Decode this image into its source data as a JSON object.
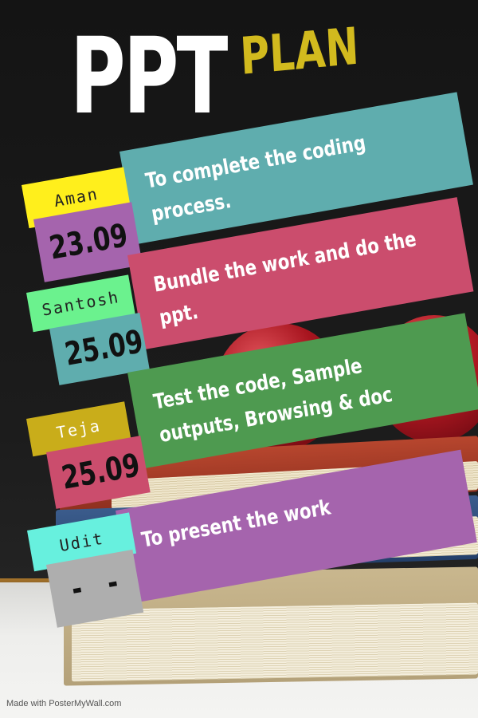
{
  "title": {
    "main": "PPT",
    "accent": "PLAN"
  },
  "plan_items": [
    {
      "name": "Aman",
      "date": "23.09",
      "task_lines": [
        "To complete the coding",
        "process."
      ]
    },
    {
      "name": "Santosh",
      "date": "25.09",
      "task_lines": [
        "Bundle the work and do the",
        "ppt."
      ]
    },
    {
      "name": "Teja",
      "date": "25.09",
      "task_lines": [
        "Test the code, Sample",
        "outputs, Browsing & doc"
      ]
    },
    {
      "name": "Udit",
      "date": "-   -",
      "task_lines": [
        "To present the work"
      ]
    }
  ],
  "footer": {
    "watermark": "Made with PosterMyWall.com"
  },
  "colors": {
    "title_main": "#ffffff",
    "title_accent": "#d2ba1e",
    "teal": "#5fadae",
    "rose": "#cb4d6d",
    "green": "#4e9a50",
    "purple": "#a564ad",
    "yellow": "#ffef1c",
    "mint": "#6bf28e",
    "mustard": "#c9ad1a",
    "aqua": "#67f0de",
    "gray": "#aeaeae",
    "background": "#1a1a1a"
  }
}
